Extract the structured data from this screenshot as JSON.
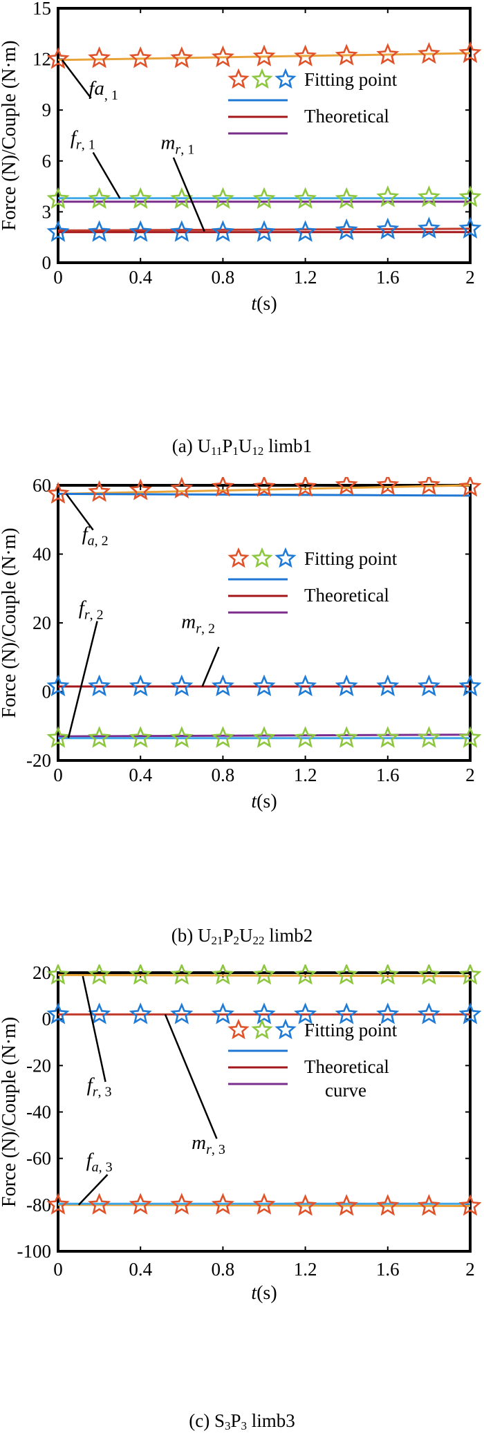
{
  "chart_data": [
    {
      "type": "line",
      "caption": {
        "prefix": "(a) U",
        "s1": "11",
        "m1": "P",
        "s2": "1",
        "m2": "U",
        "s3": "12",
        "suffix": " limb1"
      },
      "ylabel": "Force (N)/Couple (N·m)",
      "xlabel": {
        "italic": "t",
        "rest": "(s)"
      },
      "xlim": [
        0,
        2
      ],
      "ylim": [
        0,
        15
      ],
      "xticks": [
        0,
        0.4,
        0.8,
        1.2,
        1.6,
        2
      ],
      "xtick_labels": [
        "0",
        "0.4",
        "0.8",
        "1.2",
        "1.6",
        "2"
      ],
      "yticks": [
        0,
        3,
        6,
        9,
        12,
        15
      ],
      "ytick_labels": [
        "0",
        "3",
        "6",
        "9",
        "12",
        "15"
      ],
      "legend": {
        "position": "upper-right",
        "fitting_label": "Fitting point",
        "theoretical_label": "Theoretical",
        "theoretical_label2": "",
        "star_colors": [
          "#e0532a",
          "#8dc63f",
          "#1f7bd6"
        ],
        "line_colors": [
          "#1f77d4",
          "#a4161a",
          "#7b2d8e"
        ]
      },
      "series": [
        {
          "color": "#e8a33a",
          "x": [
            0,
            2
          ],
          "y": [
            11.95,
            12.35
          ]
        },
        {
          "color": "#3fa7e8",
          "x": [
            0,
            2
          ],
          "y": [
            3.8,
            3.8
          ]
        },
        {
          "color": "#7b2d8e",
          "x": [
            0,
            2
          ],
          "y": [
            3.6,
            3.6
          ]
        },
        {
          "color": "#a4161a",
          "x": [
            0,
            2
          ],
          "y": [
            1.8,
            1.8
          ]
        },
        {
          "color": "#c0392b",
          "x": [
            0,
            2
          ],
          "y": [
            1.9,
            2.0
          ]
        }
      ],
      "markers": [
        {
          "color": "#e0532a",
          "x": [
            0,
            0.2,
            0.4,
            0.6,
            0.8,
            1.0,
            1.2,
            1.4,
            1.6,
            1.8,
            2.0
          ],
          "y": [
            12.0,
            12.05,
            12.05,
            12.05,
            12.1,
            12.15,
            12.15,
            12.2,
            12.25,
            12.3,
            12.35
          ]
        },
        {
          "color": "#8dc63f",
          "x": [
            0,
            0.2,
            0.4,
            0.6,
            0.8,
            1.0,
            1.2,
            1.4,
            1.6,
            1.8,
            2.0
          ],
          "y": [
            3.75,
            3.75,
            3.75,
            3.75,
            3.75,
            3.75,
            3.75,
            3.75,
            3.85,
            3.85,
            3.85
          ]
        },
        {
          "color": "#1f7bd6",
          "x": [
            0,
            0.2,
            0.4,
            0.6,
            0.8,
            1.0,
            1.2,
            1.4,
            1.6,
            1.8,
            2.0
          ],
          "y": [
            1.8,
            1.8,
            1.8,
            1.8,
            1.8,
            1.8,
            1.8,
            1.9,
            1.95,
            2.0,
            2.0
          ]
        }
      ],
      "annotations": [
        {
          "sym": "fa",
          "sub": ", 1",
          "tx": 0.22,
          "ty": 9.9,
          "ax": 0.02,
          "ay": 11.95,
          "bx": 0.16,
          "by": 9.7,
          "italic_sub": false
        },
        {
          "sym": "f",
          "sub": "r",
          "idx": ", 1",
          "tx": 0.12,
          "ty": 7.0,
          "ax": 0.17,
          "ay": 6.5,
          "bx": 0.3,
          "by": 3.8,
          "italic_sub": true
        },
        {
          "sym": "m",
          "sub": "r",
          "idx": ", 1",
          "tx": 0.58,
          "ty": 6.7,
          "ax": 0.56,
          "ay": 6.2,
          "bx": 0.71,
          "by": 1.85,
          "italic_sub": true
        }
      ]
    },
    {
      "type": "line",
      "caption": {
        "prefix": "(b) U",
        "s1": "21",
        "m1": "P",
        "s2": "2",
        "m2": "U",
        "s3": "22",
        "suffix": " limb2"
      },
      "ylabel": "Force (N)/Couple (N·m)",
      "xlabel": {
        "italic": "t",
        "rest": "(s)"
      },
      "xlim": [
        0,
        2
      ],
      "ylim": [
        -20,
        60
      ],
      "xticks": [
        0,
        0.4,
        0.8,
        1.2,
        1.6,
        2
      ],
      "xtick_labels": [
        "0",
        "0.4",
        "0.8",
        "1.2",
        "1.6",
        "2"
      ],
      "yticks": [
        -20,
        0,
        20,
        40,
        60
      ],
      "ytick_labels": [
        "-20",
        "0",
        "20",
        "40",
        "60"
      ],
      "legend": {
        "position": "upper-right",
        "fitting_label": "Fitting point",
        "theoretical_label": "Theoretical",
        "theoretical_label2": "",
        "star_colors": [
          "#e0532a",
          "#8dc63f",
          "#1f7bd6"
        ],
        "line_colors": [
          "#1f77d4",
          "#a4161a",
          "#7b2d8e"
        ]
      },
      "series": [
        {
          "color": "#e8a33a",
          "x": [
            0,
            2
          ],
          "y": [
            57.5,
            60.0
          ]
        },
        {
          "color": "#1f77d4",
          "x": [
            0,
            2
          ],
          "y": [
            57.5,
            57.0
          ]
        },
        {
          "color": "#a4161a",
          "x": [
            0,
            2
          ],
          "y": [
            1.5,
            1.5
          ]
        },
        {
          "color": "#7b2d8e",
          "x": [
            0,
            2
          ],
          "y": [
            -13.0,
            -12.5
          ]
        },
        {
          "color": "#3fa7e8",
          "x": [
            0,
            2
          ],
          "y": [
            -13.5,
            -13.5
          ]
        }
      ],
      "markers": [
        {
          "color": "#e0532a",
          "x": [
            0,
            0.2,
            0.4,
            0.6,
            0.8,
            1.0,
            1.2,
            1.4,
            1.6,
            1.8,
            2.0
          ],
          "y": [
            57.5,
            58.0,
            58.5,
            59.0,
            59.5,
            59.5,
            59.5,
            60.0,
            60.0,
            60.0,
            59.5
          ]
        },
        {
          "color": "#8dc63f",
          "x": [
            0,
            0.2,
            0.4,
            0.6,
            0.8,
            1.0,
            1.2,
            1.4,
            1.6,
            1.8,
            2.0
          ],
          "y": [
            -13.5,
            -13.5,
            -13.5,
            -13.5,
            -13.5,
            -13.5,
            -13.5,
            -13.5,
            -13.5,
            -13.5,
            -13.5
          ]
        },
        {
          "color": "#1f7bd6",
          "x": [
            0,
            0.2,
            0.4,
            0.6,
            0.8,
            1.0,
            1.2,
            1.4,
            1.6,
            1.8,
            2.0
          ],
          "y": [
            1.5,
            1.5,
            1.5,
            1.5,
            1.5,
            1.5,
            1.5,
            1.5,
            1.5,
            1.5,
            1.5
          ]
        }
      ],
      "annotations": [
        {
          "sym": "f",
          "sub": "a",
          "idx": ", 2",
          "tx": 0.18,
          "ty": 44.0,
          "ax": 0.04,
          "ay": 57.5,
          "bx": 0.17,
          "by": 47.0,
          "italic_sub": true
        },
        {
          "sym": "f",
          "sub": "r",
          "idx": ", 2",
          "tx": 0.16,
          "ty": 22.5,
          "ax": 0.19,
          "ay": 20.5,
          "bx": 0.05,
          "by": -13.5,
          "italic_sub": true
        },
        {
          "sym": "m",
          "sub": "r",
          "idx": ", 2",
          "tx": 0.68,
          "ty": 18.5,
          "ax": 0.78,
          "ay": 13.0,
          "bx": 0.7,
          "by": 1.5,
          "italic_sub": true
        }
      ]
    },
    {
      "type": "line",
      "caption": {
        "prefix": "(c) S",
        "s1": "3",
        "m1": "P",
        "s2": "3",
        "m2": "",
        "s3": "",
        "suffix": " limb3"
      },
      "ylabel": "Force (N)/Couple (N·m)",
      "xlabel": {
        "italic": "t",
        "rest": "(s)"
      },
      "xlim": [
        0,
        2
      ],
      "ylim": [
        -100,
        20
      ],
      "xticks": [
        0,
        0.4,
        0.8,
        1.2,
        1.6,
        2
      ],
      "xtick_labels": [
        "0",
        "0.4",
        "0.8",
        "1.2",
        "1.6",
        "2"
      ],
      "yticks": [
        -100,
        -80,
        -60,
        -40,
        -20,
        0,
        20
      ],
      "ytick_labels": [
        "-100",
        "-80",
        "-60",
        "-40",
        "-20",
        "0",
        "20"
      ],
      "legend": {
        "position": "upper-right",
        "fitting_label": "Fitting point",
        "theoretical_label": "Theoretical",
        "theoretical_label2": "curve",
        "star_colors": [
          "#e0532a",
          "#8dc63f",
          "#1f7bd6"
        ],
        "line_colors": [
          "#1f77d4",
          "#a4161a",
          "#7b2d8e"
        ]
      },
      "series": [
        {
          "color": "#e8a33a",
          "x": [
            0,
            2
          ],
          "y": [
            19.0,
            18.5
          ]
        },
        {
          "color": "#c0392b",
          "x": [
            0,
            2
          ],
          "y": [
            2.0,
            2.0
          ]
        },
        {
          "color": "#e8a33a",
          "x": [
            0,
            2
          ],
          "y": [
            -80.0,
            -80.5
          ]
        },
        {
          "color": "#3fa7e8",
          "x": [
            0,
            2
          ],
          "y": [
            -79.5,
            -79.5
          ]
        }
      ],
      "markers": [
        {
          "color": "#e0532a",
          "x": [
            0,
            0.2,
            0.4,
            0.6,
            0.8,
            1.0,
            1.2,
            1.4,
            1.6,
            1.8,
            2.0
          ],
          "y": [
            -80.0,
            -80.0,
            -80.0,
            -80.0,
            -80.0,
            -80.0,
            -80.5,
            -80.5,
            -80.5,
            -80.5,
            -80.5
          ]
        },
        {
          "color": "#8dc63f",
          "x": [
            0,
            0.2,
            0.4,
            0.6,
            0.8,
            1.0,
            1.2,
            1.4,
            1.6,
            1.8,
            2.0
          ],
          "y": [
            19.0,
            19.0,
            19.0,
            19.0,
            19.0,
            19.0,
            19.0,
            19.0,
            19.0,
            19.0,
            19.0
          ]
        },
        {
          "color": "#1f7bd6",
          "x": [
            0,
            0.2,
            0.4,
            0.6,
            0.8,
            1.0,
            1.2,
            1.4,
            1.6,
            1.8,
            2.0
          ],
          "y": [
            2.0,
            2.0,
            2.0,
            2.0,
            2.0,
            2.0,
            2.0,
            2.0,
            2.0,
            2.0,
            2.0
          ]
        }
      ],
      "annotations": [
        {
          "sym": "f",
          "sub": "r",
          "idx": ", 3",
          "tx": 0.2,
          "ty": -31.0,
          "ax": 0.12,
          "ay": 18.5,
          "bx": 0.23,
          "by": -27.0,
          "italic_sub": true
        },
        {
          "sym": "m",
          "sub": "r",
          "idx": ", 3",
          "tx": 0.73,
          "ty": -56.0,
          "ax": 0.52,
          "ay": 2.0,
          "bx": 0.77,
          "by": -51.5,
          "italic_sub": true
        },
        {
          "sym": "f",
          "sub": "a",
          "idx": ", 3",
          "tx": 0.2,
          "ty": -63.5,
          "ax": 0.24,
          "ay": -67.0,
          "bx": 0.1,
          "by": -80.0,
          "italic_sub": true
        }
      ]
    }
  ]
}
